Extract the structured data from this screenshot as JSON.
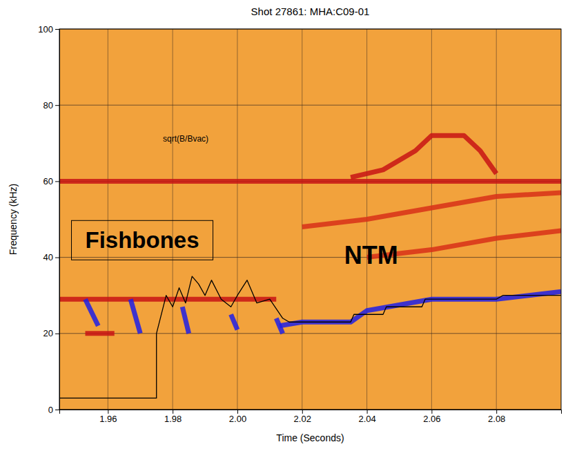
{
  "chart_data": {
    "type": "line",
    "title": "Shot 27861: MHA:C09-01",
    "x_label": "Time (Seconds)",
    "y_label": "Frequency (kHz)",
    "xlim": [
      1.945,
      2.1
    ],
    "xticks": [
      1.96,
      1.98,
      {
        "value": 2.0,
        "label": "2.00"
      },
      2.02,
      2.04,
      2.06,
      2.08
    ],
    "ylim": [
      0,
      100
    ],
    "yticks": [
      0,
      20,
      40,
      60,
      80,
      100
    ],
    "grid": true,
    "annotations": [
      {
        "text": "Fishbones",
        "x": 1.953,
        "y": 44
      },
      {
        "text": "NTM",
        "x": 2.033,
        "y": 40
      },
      {
        "text": "sqrt(B/Bvac)",
        "x": 1.977,
        "y": 71
      }
    ],
    "series": [
      {
        "type": "band",
        "color": "#c81414",
        "x": [
          1.945,
          2.1
        ],
        "values": [
          60,
          60
        ]
      },
      {
        "type": "band",
        "color": "#c81414",
        "x": [
          2.035,
          2.045,
          2.055,
          2.06,
          2.07,
          2.075,
          2.08
        ],
        "values": [
          61,
          63,
          68,
          72,
          72,
          68,
          62
        ]
      },
      {
        "type": "band",
        "color": "#d83018",
        "x": [
          2.02,
          2.04,
          2.06,
          2.08,
          2.1
        ],
        "values": [
          48,
          50,
          53,
          56,
          57
        ]
      },
      {
        "type": "band",
        "color": "#d83018",
        "x": [
          2.04,
          2.06,
          2.08,
          2.1
        ],
        "values": [
          40,
          42,
          45,
          47
        ]
      },
      {
        "type": "band",
        "color": "#c81414",
        "x": [
          1.945,
          2.012
        ],
        "values": [
          29,
          29
        ]
      },
      {
        "type": "band",
        "color": "#c81414",
        "x": [
          1.953,
          1.962
        ],
        "values": [
          20,
          20
        ]
      },
      {
        "type": "band",
        "color": "#1e1ee6",
        "x": [
          2.013,
          2.02,
          2.035,
          2.04,
          2.06,
          2.08,
          2.1
        ],
        "values": [
          22,
          23,
          23,
          26,
          29,
          29,
          31
        ]
      },
      {
        "type": "band",
        "color": "#1e1ee6",
        "x": [
          1.953,
          1.957
        ],
        "values": [
          29,
          22
        ]
      },
      {
        "type": "band",
        "color": "#1e1ee6",
        "x": [
          1.967,
          1.97
        ],
        "values": [
          29,
          20
        ]
      },
      {
        "type": "band",
        "color": "#1e1ee6",
        "x": [
          1.983,
          1.985
        ],
        "values": [
          27,
          20
        ]
      },
      {
        "type": "band",
        "color": "#1e1ee6",
        "x": [
          1.998,
          2.0
        ],
        "values": [
          25,
          21
        ]
      },
      {
        "type": "band",
        "color": "#1e1ee6",
        "x": [
          2.012,
          2.014
        ],
        "values": [
          24,
          20
        ]
      },
      {
        "type": "line",
        "color": "#000000",
        "x": [
          1.945,
          1.975,
          1.975,
          1.978,
          1.98,
          1.982,
          1.984,
          1.986,
          1.988,
          1.99,
          1.992,
          1.995,
          1.998,
          2.0,
          2.003,
          2.006,
          2.01,
          2.014,
          2.016,
          2.035,
          2.036,
          2.045,
          2.046,
          2.057,
          2.058,
          2.08,
          2.082,
          2.1
        ],
        "values": [
          3,
          3,
          20,
          30,
          27,
          32,
          28,
          35,
          33,
          30,
          34,
          29,
          27,
          30,
          34,
          28,
          29,
          24,
          23,
          23,
          25,
          25,
          27,
          27,
          29,
          29,
          30,
          30
        ]
      }
    ]
  }
}
